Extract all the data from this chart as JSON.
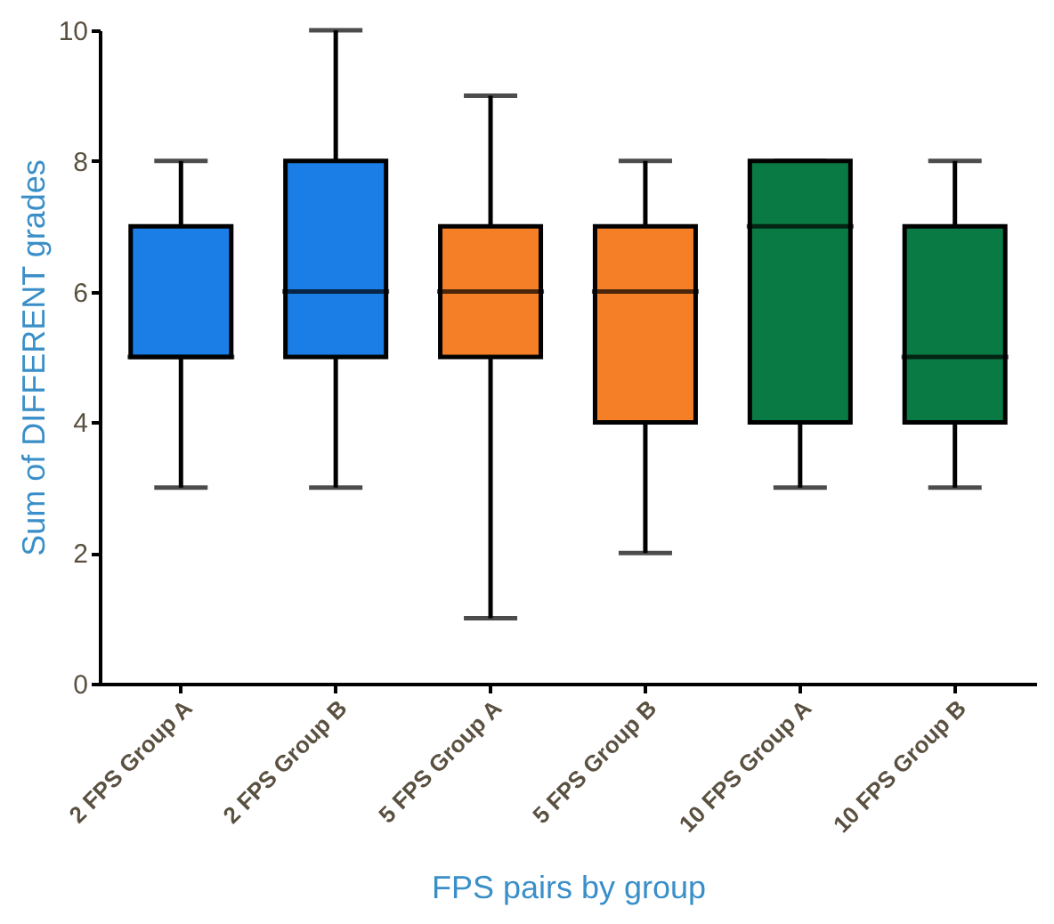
{
  "chart_data": {
    "type": "box",
    "xlabel": "FPS pairs by group",
    "ylabel": "Sum of DIFFERENT grades",
    "categories": [
      "2 FPS Group A",
      "2 FPS Group B",
      "5 FPS Group A",
      "5 FPS Group B",
      "10 FPS Group A",
      "10 FPS Group B"
    ],
    "colors": [
      "#1a7ee6",
      "#1a7ee6",
      "#f57f26",
      "#f57f26",
      "#0a7a44",
      "#0a7a44"
    ],
    "boxes": [
      {
        "low": 3,
        "q1": 5,
        "median": 5,
        "q3": 7,
        "high": 8
      },
      {
        "low": 3,
        "q1": 5,
        "median": 6,
        "q3": 8,
        "high": 10
      },
      {
        "low": 1,
        "q1": 5,
        "median": 6,
        "q3": 7,
        "high": 9
      },
      {
        "low": 2,
        "q1": 4,
        "median": 6,
        "q3": 7,
        "high": 8
      },
      {
        "low": 3,
        "q1": 4,
        "median": 7,
        "q3": 8,
        "high": 8
      },
      {
        "low": 3,
        "q1": 4,
        "median": 5,
        "q3": 7,
        "high": 8
      }
    ],
    "ylim": [
      0,
      10
    ],
    "yticks": [
      0,
      2,
      4,
      6,
      8,
      10
    ],
    "grid": false,
    "legend": false
  }
}
